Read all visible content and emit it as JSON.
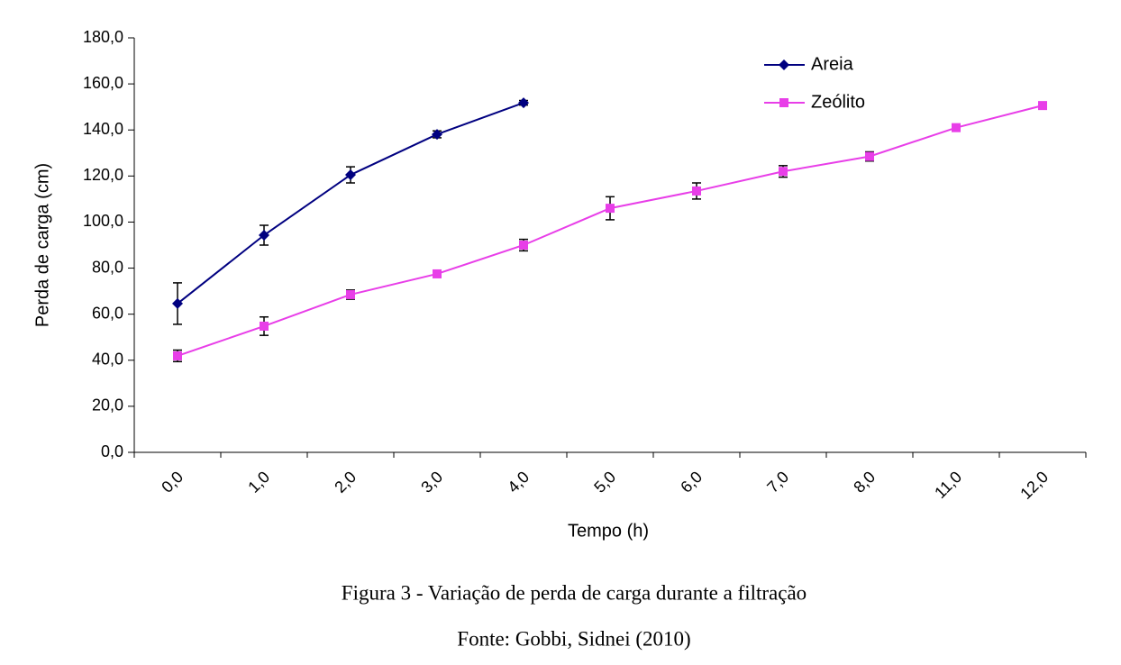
{
  "chart_data": {
    "type": "line",
    "categories": [
      "0,0",
      "1,0",
      "2,0",
      "3,0",
      "4,0",
      "5,0",
      "6,0",
      "7,0",
      "8,0",
      "11,0",
      "12,0"
    ],
    "series": [
      {
        "name": "Areia",
        "color": "#000080",
        "marker": "diamond",
        "values": [
          64.6,
          94.3,
          120.5,
          138.1,
          151.8,
          null,
          null,
          null,
          null,
          null,
          null
        ],
        "errors": [
          9,
          4.3,
          3.5,
          1.5,
          1,
          null,
          null,
          null,
          null,
          null,
          null
        ]
      },
      {
        "name": "Zeólito",
        "color": "#e83ee8",
        "marker": "square",
        "values": [
          41.9,
          54.8,
          68.5,
          77.5,
          90,
          106,
          113.5,
          122,
          128.5,
          141,
          150.6
        ],
        "errors": [
          2.5,
          4,
          2,
          1,
          2.5,
          5,
          3.5,
          2.5,
          2,
          1,
          1
        ]
      }
    ],
    "ylim": [
      0,
      180
    ],
    "yticks": [
      {
        "value": 0,
        "label": "0,0"
      },
      {
        "value": 20,
        "label": "20,0"
      },
      {
        "value": 40,
        "label": "40,0"
      },
      {
        "value": 60,
        "label": "60,0"
      },
      {
        "value": 80,
        "label": "80,0"
      },
      {
        "value": 100,
        "label": "100,0"
      },
      {
        "value": 120,
        "label": "120,0"
      },
      {
        "value": 140,
        "label": "140,0"
      },
      {
        "value": 160,
        "label": "160,0"
      },
      {
        "value": 180,
        "label": "180,0"
      }
    ],
    "xlabel": "Tempo (h)",
    "ylabel": "Perda de carga (cm)",
    "legend": "top-right",
    "grid": false,
    "caption": "Figura 3 - Variação de perda de carga durante a filtração",
    "source": "Fonte: Gobbi, Sidnei (2010)"
  }
}
